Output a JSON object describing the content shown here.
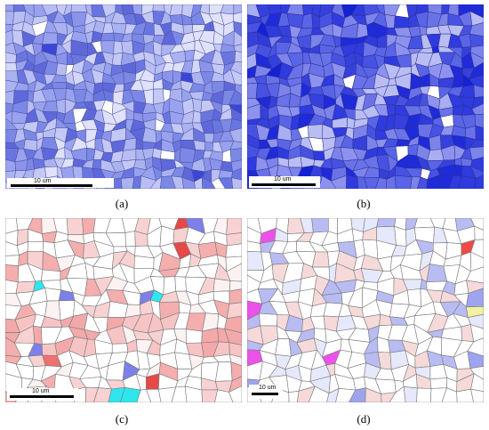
{
  "panels": [
    {
      "id": "a",
      "caption": "(a)",
      "scale_label": "10 um",
      "base_color": "#8c96e8",
      "grain_palette": [
        "#7c88e6",
        "#98a2ee",
        "#aab2f0",
        "#6a76e0",
        "#b8beF3",
        "#8a94ea",
        "#5e68da",
        "#c4c8f5"
      ],
      "accent_colors": [
        "#ffffff",
        "#3c46d6",
        "#d4d8f8"
      ]
    },
    {
      "id": "b",
      "caption": "(b)",
      "scale_label": "10 um",
      "base_color": "#3a44e0",
      "grain_palette": [
        "#2f3bde",
        "#4752e2",
        "#5a64e6",
        "#1f2bd8",
        "#6a72e8",
        "#7c84ea",
        "#3640dc",
        "#8c92ee"
      ],
      "accent_colors": [
        "#ffffff",
        "#1422d2",
        "#a9aef2"
      ]
    },
    {
      "id": "c",
      "caption": "(c)",
      "scale_label": "10 um",
      "base_color": "#ffffff",
      "grain_palette": [
        "#ffffff",
        "#ffffff",
        "#ffffff",
        "#fdf2f2",
        "#ffffff",
        "#f8d2d2",
        "#ffffff",
        "#f4aeae"
      ],
      "accent_colors": [
        "#ee7070",
        "#7c80e8",
        "#2ee6ee",
        "#e84848"
      ]
    },
    {
      "id": "d",
      "caption": "(d)",
      "scale_label": "10 um",
      "base_color": "#ffffff",
      "grain_palette": [
        "#ffffff",
        "#ffffff",
        "#ffffff",
        "#e6e8fb",
        "#ffffff",
        "#b8bcf2",
        "#ffffff",
        "#f6dada"
      ],
      "accent_colors": [
        "#f04848",
        "#56eeee",
        "#f4f0a0",
        "#9ea4ee",
        "#ec52ea",
        "#e82020"
      ]
    }
  ]
}
